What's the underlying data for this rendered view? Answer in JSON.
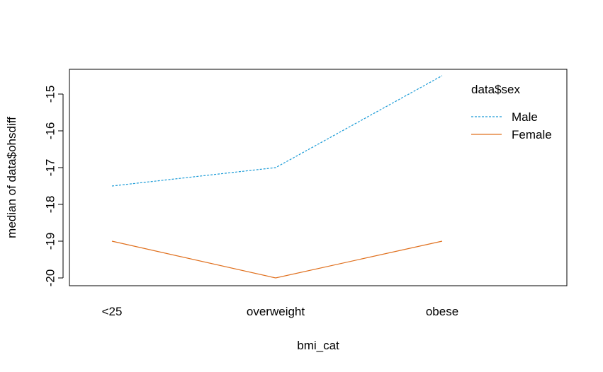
{
  "chart_data": {
    "type": "line",
    "categories": [
      "<25",
      "overweight",
      "obese"
    ],
    "xlabel": "bmi_cat",
    "ylabel": "median of  data$ohsdiff",
    "ylim": [
      -20.2,
      -14.3
    ],
    "yticks": [
      -20,
      -19,
      -18,
      -17,
      -16,
      -15
    ],
    "grid": false,
    "legend": {
      "title": "data$sex",
      "placement": "top-right"
    },
    "series": [
      {
        "name": "Male",
        "values": [
          -17.5,
          -17,
          -14.5
        ],
        "color": "#1A9BD7",
        "dash": "dashed"
      },
      {
        "name": "Female",
        "values": [
          -19,
          -20,
          -19
        ],
        "color": "#E0701E",
        "dash": "solid"
      }
    ]
  }
}
